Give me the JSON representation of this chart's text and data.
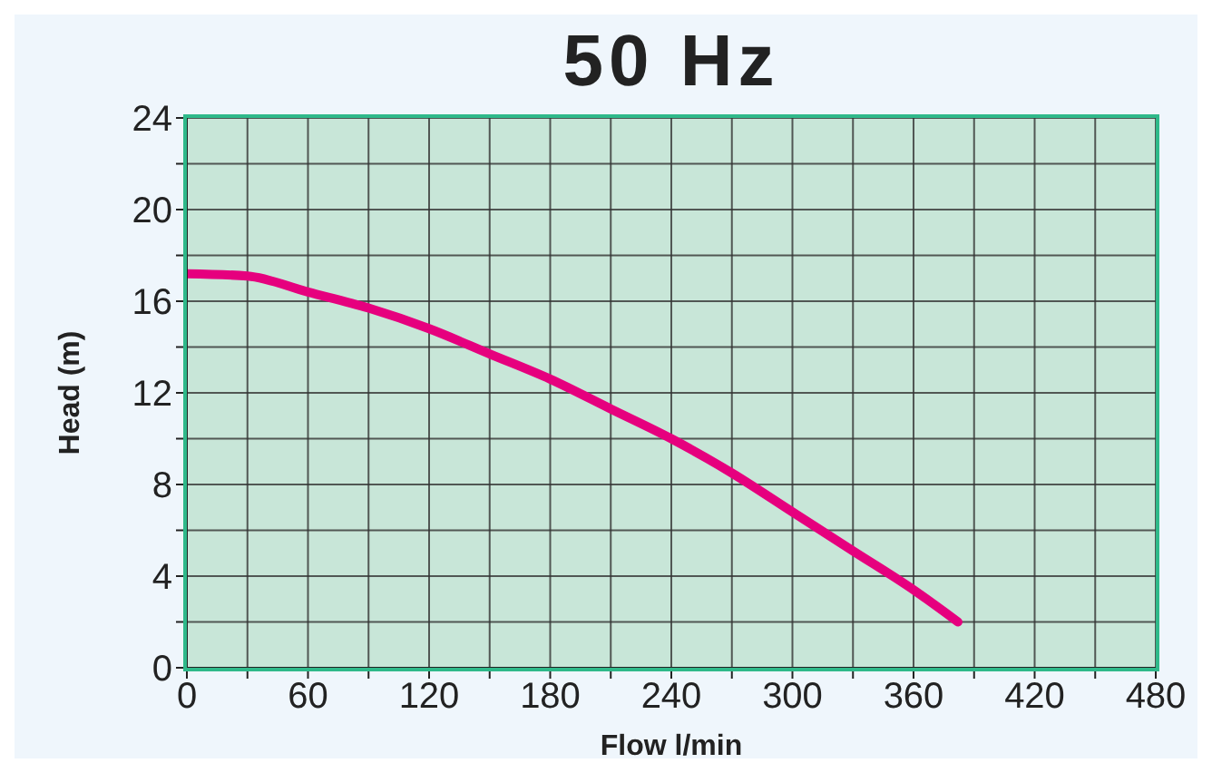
{
  "chart_data": {
    "type": "line",
    "title": "50 Hz",
    "xlabel": "Flow l/min",
    "ylabel": "Head (m)",
    "x": [
      0,
      30,
      60,
      90,
      120,
      150,
      180,
      210,
      240,
      270,
      300,
      330,
      360,
      382
    ],
    "series": [
      {
        "color": "#e6007e",
        "values": [
          17.2,
          17.1,
          16.4,
          15.7,
          14.8,
          13.7,
          12.6,
          11.3,
          10.0,
          8.5,
          6.8,
          5.1,
          3.4,
          2.0
        ]
      }
    ],
    "xlim": [
      0,
      480
    ],
    "xticks": [
      0,
      {
        "value": 30,
        "label": null
      },
      60,
      {
        "value": 90,
        "label": null
      },
      120,
      {
        "value": 150,
        "label": null
      },
      180,
      {
        "value": 210,
        "label": null
      },
      240,
      {
        "value": 270,
        "label": null
      },
      300,
      {
        "value": 330,
        "label": null
      },
      360,
      {
        "value": 390,
        "label": null
      },
      420,
      {
        "value": 450,
        "label": null
      },
      480
    ],
    "ylim": [
      0,
      24
    ],
    "yticks": [
      0,
      {
        "value": 2,
        "label": null
      },
      4,
      {
        "value": 6,
        "label": null
      },
      8,
      {
        "value": 10,
        "label": null
      },
      12,
      {
        "value": 14,
        "label": null
      },
      16,
      {
        "value": 18,
        "label": null
      },
      20,
      {
        "value": 22,
        "label": null
      },
      24
    ],
    "grid": true,
    "marker": "none",
    "line_style": "solid"
  }
}
